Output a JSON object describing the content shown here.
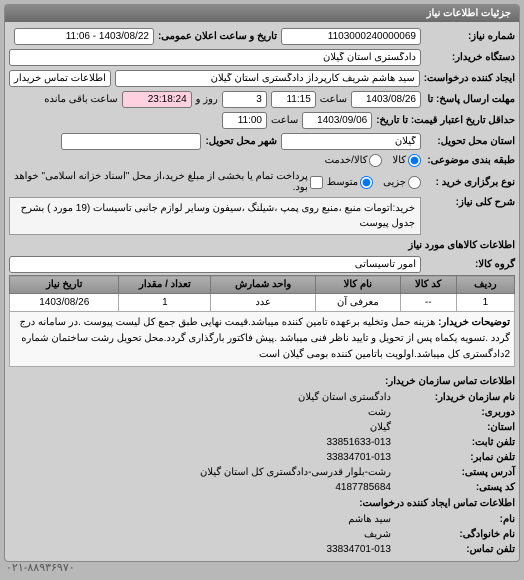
{
  "panel_title": "جزئیات اطلاعات نیاز",
  "fields": {
    "shomare_niaz_label": "شماره نیاز:",
    "shomare_niaz": "1103000240000069",
    "tarikh_elan_label": "تاریخ و ساعت اعلان عمومی:",
    "tarikh_elan": "1403/08/22 - 11:06",
    "dastgah_label": "دستگاه خریدار:",
    "dastgah": "دادگستری استان گیلان",
    "ijad_label": "ایجاد کننده درخواست:",
    "ijad": "سید هاشم شریف کارپرداز دادگستری استان گیلان",
    "tamas_btn": "اطلاعات تماس خریدار",
    "mohlat_label": "مهلت ارسال پاسخ: تا",
    "mohlat_tarikh": "1403/08/26",
    "saat_label": "ساعت",
    "mohlat_saat": "11:15",
    "rooz_va_label": "روز و",
    "rooz": "3",
    "baghi_label": "ساعت باقی مانده",
    "baghi": "23:18:24",
    "etebar_label": "حداقل تاریخ اعتبار قیمت: تا تاریخ:",
    "etebar_tarikh": "1403/09/06",
    "etebar_saat": "11:00",
    "mahal_label": "استان محل تحویل:",
    "mahal": "گیلان",
    "shahr_label": "شهر محل تحویل:",
    "mozooi_label": "طبقه بندی موضوعی:",
    "kala_opt": "کالا",
    "khedmat_opt": "کالا/خدمت",
    "kharid_label": "نوع برگزاری خرید :",
    "jozi_opt": "جزیی",
    "motavaset_opt": "متوسط",
    "pardakht_note": "پرداخت تمام یا بخشی از مبلغ خرید،از محل \"اسناد خزانه اسلامی\" خواهد بود.",
    "sharh_label": "شرح کلی نیاز:",
    "sharh": "خرید:اتومات منبع ،منبع روی پمپ ،شیلنگ ،سیفون وسایر لوازم جانبی تاسیسات (19 مورد ) بشرح جدول پیوست",
    "kala_section": "اطلاعات کالاهای مورد نیاز",
    "gorooh_label": "گروه کالا:",
    "gorooh": "امور تاسیساتی"
  },
  "table": {
    "headers": [
      "ردیف",
      "کد کالا",
      "نام کالا",
      "واحد شمارش",
      "تعداد / مقدار",
      "تاریخ نیاز"
    ],
    "row": [
      "1",
      "--",
      "معرفی آن",
      "عدد",
      "1",
      "1403/08/26"
    ],
    "desc_label": "توضیحات خریدار:",
    "desc": "هزینه حمل وتخلیه برعهده تامین کننده میباشد.قیمت نهایی طبق جمع کل لیست پیوست .در سامانه درج گردد .تسویه یکماه پس از تحویل و تایید ناظر فنی میباشد .پیش فاکتور بارگذاری گردد.محل تحویل رشت ساختمان شماره 2دادگستری کل میباشد.اولویت باتامین کننده بومی گیلان است"
  },
  "contact": {
    "header": "اطلاعات تماس سازمان خریدار:",
    "lines": [
      {
        "label": "نام سازمان خریدار:",
        "val": "دادگستری استان گیلان"
      },
      {
        "label": "دوربری:",
        "val": "رشت"
      },
      {
        "label": "استان:",
        "val": "گیلان"
      },
      {
        "label": "تلفن ثابت:",
        "val": "33851633-013"
      },
      {
        "label": "تلفن نمابر:",
        "val": "33834701-013"
      },
      {
        "label": "آدرس پستی:",
        "val": "رشت-بلوار قدرسی-دادگستری کل استان گیلان"
      },
      {
        "label": "کد پستی:",
        "val": "4187785684"
      }
    ],
    "header2": "اطلاعات تماس ایجاد کننده درخواست:",
    "lines2": [
      {
        "label": "نام:",
        "val": "سید هاشم"
      },
      {
        "label": "نام خانوادگی:",
        "val": "شریف"
      },
      {
        "label": "تلفن تماس:",
        "val": "33834701-013"
      }
    ],
    "footer_phone": "۰۲۱-۸۸۹۳۶۹۷۰"
  }
}
